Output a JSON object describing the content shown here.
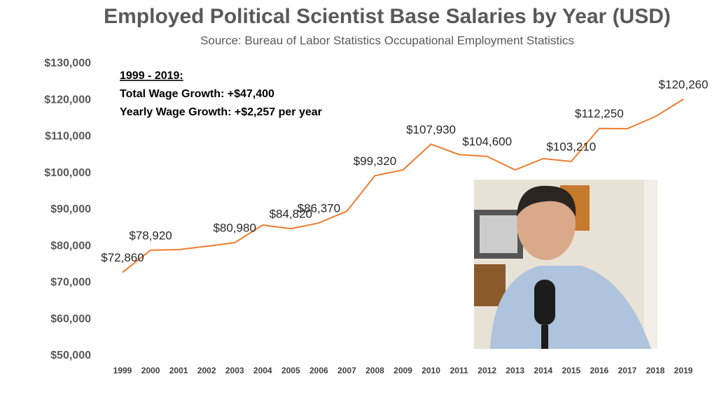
{
  "chart_data": {
    "type": "line",
    "title": "Employed Political Scientist Base Salaries by Year (USD)",
    "subtitle": "Source: Bureau of Labor Statistics Occupational Employment Statistics",
    "annotations": [
      "1999 - 2019:",
      "Total Wage Growth: +$47,400",
      "Yearly Wage Growth: +$2,257 per year"
    ],
    "categories": [
      "1999",
      "2000",
      "2001",
      "2002",
      "2003",
      "2004",
      "2005",
      "2006",
      "2007",
      "2008",
      "2009",
      "2010",
      "2011",
      "2012",
      "2013",
      "2014",
      "2015",
      "2016",
      "2017",
      "2018",
      "2019"
    ],
    "values": [
      72860,
      78920,
      79100,
      80000,
      80980,
      85800,
      84820,
      86370,
      89600,
      99320,
      100900,
      107930,
      105100,
      104600,
      100900,
      104000,
      103210,
      112250,
      112200,
      115500,
      120260
    ],
    "value_labels": [
      "$72,860",
      "$78,920",
      null,
      null,
      "$80,980",
      null,
      "$84,820",
      "$86,370",
      null,
      "$99,320",
      null,
      "$107,930",
      null,
      "$104,600",
      null,
      null,
      "$103,210",
      "$112,250",
      null,
      null,
      "$120,260"
    ],
    "color": "#ed7d31",
    "ylim": [
      50000,
      130000
    ],
    "yticks": [
      {
        "value": 50000,
        "label": "$50,000"
      },
      {
        "value": 60000,
        "label": "$60,000"
      },
      {
        "value": 70000,
        "label": "$70,000"
      },
      {
        "value": 80000,
        "label": "$80,000"
      },
      {
        "value": 90000,
        "label": "$90,000"
      },
      {
        "value": 100000,
        "label": "$100,000"
      },
      {
        "value": 110000,
        "label": "$110,000"
      },
      {
        "value": 120000,
        "label": "$120,000"
      },
      {
        "value": 130000,
        "label": "$130,000"
      }
    ],
    "grid": false
  }
}
